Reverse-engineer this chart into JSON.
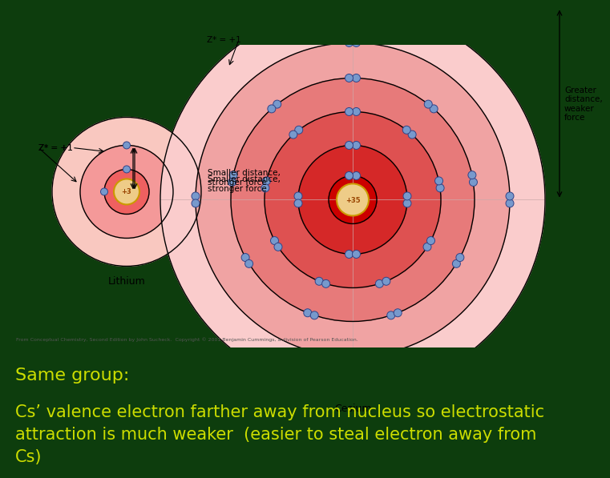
{
  "bg_color": "#0d3d0d",
  "image_bg": "#ffffff",
  "title_text": "Same group:",
  "body_text": "Cs’ valence electron farther away from nucleus so electrostatic\nattraction is much weaker  (easier to steal electron away from\nCs)",
  "text_color": "#ccdd00",
  "title_fontsize": 16,
  "body_fontsize": 15,
  "caption": "From Conceptual Chemistry, Second Edition by John Sucheck.  Copyright © 2001 Benjamin Cummings, a division of Pearson Education.",
  "li_label": "Lithium",
  "cs_label": "Cesium",
  "li_nucleus_label": "+3",
  "cs_nucleus_label": "+35",
  "li_zeff": "Z* = +1",
  "cs_zeff": "Z* = +1",
  "li_annotation": "Smaller distance,\nstronger force",
  "cs_annotation": "Greater\ndistance,\nweaker\nforce",
  "colors_deep": [
    "#cc0000",
    "#dd1111",
    "#e83333",
    "#f05555",
    "#f8a0a0",
    "#fdd0c8"
  ],
  "electron_color": "#7799cc",
  "electron_edge": "#334488",
  "nucleus_color": "#eecc88",
  "nucleus_edge": "#cc9900",
  "nucleus_text": "#994400"
}
